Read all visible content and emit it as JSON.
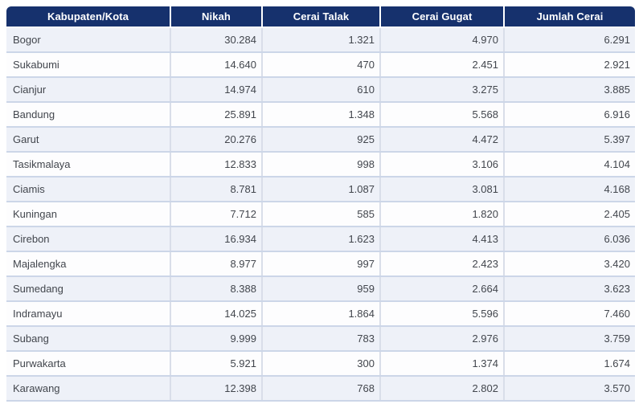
{
  "chart_data": {
    "type": "table",
    "title": "",
    "columns": [
      "Kabupaten/Kota",
      "Nikah",
      "Cerai Talak",
      "Cerai Gugat",
      "Jumlah Cerai"
    ],
    "rows": [
      [
        "Bogor",
        "30.284",
        "1.321",
        "4.970",
        "6.291"
      ],
      [
        "Sukabumi",
        "14.640",
        "470",
        "2.451",
        "2.921"
      ],
      [
        "Cianjur",
        "14.974",
        "610",
        "3.275",
        "3.885"
      ],
      [
        "Bandung",
        "25.891",
        "1.348",
        "5.568",
        "6.916"
      ],
      [
        "Garut",
        "20.276",
        "925",
        "4.472",
        "5.397"
      ],
      [
        "Tasikmalaya",
        "12.833",
        "998",
        "3.106",
        "4.104"
      ],
      [
        "Ciamis",
        "8.781",
        "1.087",
        "3.081",
        "4.168"
      ],
      [
        "Kuningan",
        "7.712",
        "585",
        "1.820",
        "2.405"
      ],
      [
        "Cirebon",
        "16.934",
        "1.623",
        "4.413",
        "6.036"
      ],
      [
        "Majalengka",
        "8.977",
        "997",
        "2.423",
        "3.420"
      ],
      [
        "Sumedang",
        "8.388",
        "959",
        "2.664",
        "3.623"
      ],
      [
        "Indramayu",
        "14.025",
        "1.864",
        "5.596",
        "7.460"
      ],
      [
        "Subang",
        "9.999",
        "783",
        "2.976",
        "3.759"
      ],
      [
        "Purwakarta",
        "5.921",
        "300",
        "1.374",
        "1.674"
      ],
      [
        "Karawang",
        "12.398",
        "768",
        "2.802",
        "3.570"
      ]
    ],
    "number_format": "Indonesian thousands separator (.)",
    "layout": {
      "header_align": "center",
      "first_column_align": "left",
      "numeric_columns_align": "right",
      "zebra_striping": "odd rows shaded"
    }
  },
  "colors": {
    "header_bg": "#16316d",
    "header_text": "#ffffff",
    "row_shaded_bg": "#eef1f8",
    "row_plain_bg": "#fdfdfe",
    "row_separator": "#ccd6e8",
    "column_separator": "#d9dee9",
    "body_text": "#42464d"
  }
}
